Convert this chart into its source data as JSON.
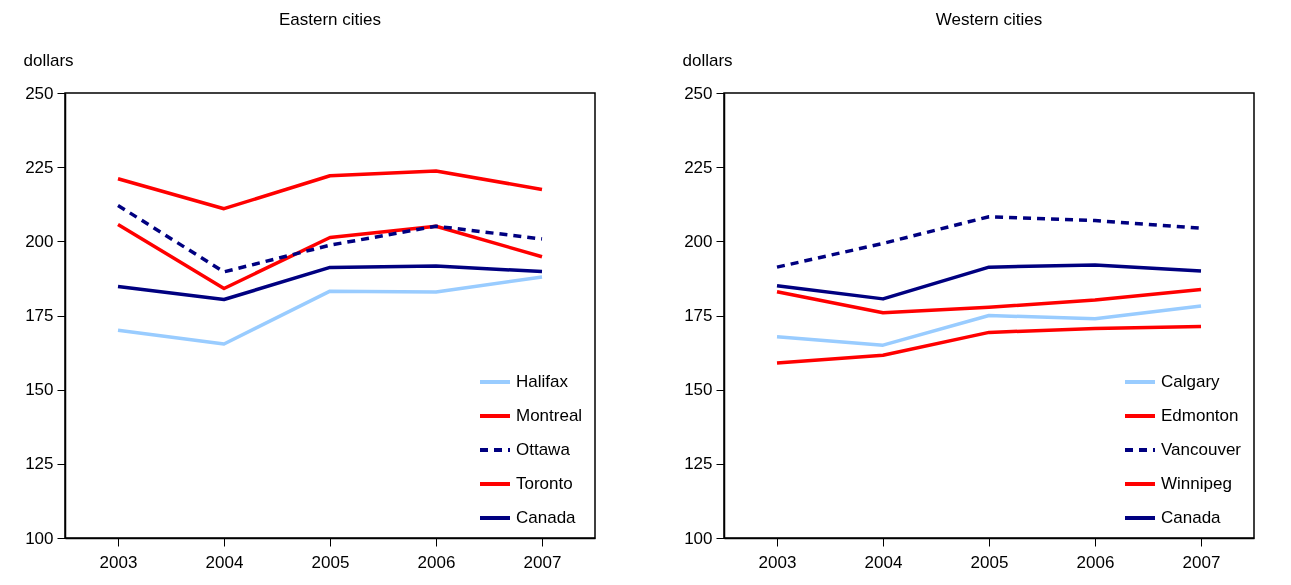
{
  "chart_data": [
    {
      "type": "line",
      "title": "Eastern cities",
      "ylabel": "dollars",
      "categories": [
        "2003",
        "2004",
        "2005",
        "2006",
        "2007"
      ],
      "ylim": [
        100,
        250
      ],
      "yticks": [
        100,
        125,
        150,
        175,
        200,
        225,
        250
      ],
      "grid": false,
      "legend": "bottom right",
      "series": [
        {
          "name": "Halifax",
          "color": "#99ccff",
          "values": [
            170,
            165.4,
            183.2,
            182.9,
            188
          ]
        },
        {
          "name": "Montreal",
          "color": "#ff0000",
          "values": [
            205.7,
            184.1,
            201.3,
            205.1,
            194.8
          ]
        },
        {
          "name": "Ottawa",
          "color": "#000080",
          "line_style": "dashed",
          "values": [
            212.1,
            189.7,
            198.7,
            205.1,
            200.8
          ]
        },
        {
          "name": "Toronto",
          "color": "#ff0000",
          "values": [
            221.1,
            211,
            222.1,
            223.7,
            217.5
          ]
        },
        {
          "name": "Canada",
          "color": "#000080",
          "values": [
            184.8,
            180.4,
            191.2,
            191.7,
            189.8
          ]
        }
      ]
    },
    {
      "type": "line",
      "title": "Western cities",
      "ylabel": "dollars",
      "categories": [
        "2003",
        "2004",
        "2005",
        "2006",
        "2007"
      ],
      "ylim": [
        100,
        250
      ],
      "yticks": [
        100,
        125,
        150,
        175,
        200,
        225,
        250
      ],
      "grid": false,
      "legend": "bottom right",
      "series": [
        {
          "name": "Calgary",
          "color": "#99ccff",
          "values": [
            167.8,
            165,
            175,
            173.9,
            178.2
          ]
        },
        {
          "name": "Edmonton",
          "color": "#ff0000",
          "values": [
            159,
            161.6,
            169.3,
            170.6,
            171.3
          ]
        },
        {
          "name": "Vancouver",
          "color": "#000080",
          "line_style": "dashed",
          "values": [
            191.3,
            199.3,
            208.3,
            207,
            204.4
          ]
        },
        {
          "name": "Winnipeg",
          "color": "#ff0000",
          "values": [
            183,
            175.9,
            177.8,
            180.2,
            183.8
          ]
        },
        {
          "name": "Canada",
          "color": "#000080",
          "values": [
            185,
            180.6,
            191.3,
            192,
            190
          ]
        }
      ]
    }
  ]
}
